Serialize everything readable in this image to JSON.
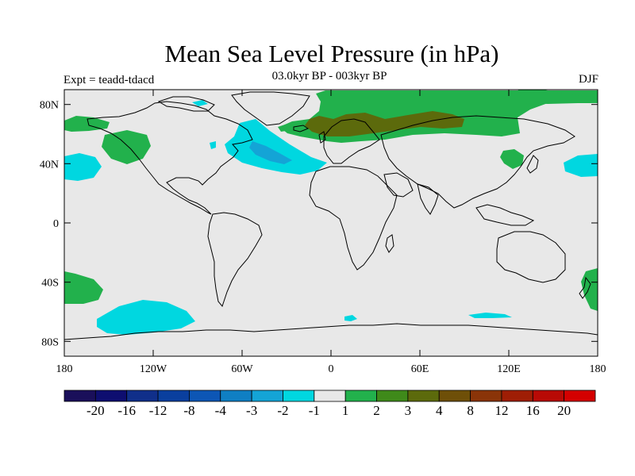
{
  "map": {
    "title": "Mean Sea Level Pressure (in hPa)",
    "subtitle": "03.0kyr BP - 003kyr BP",
    "experiment": "Expt = teadd-tdacd",
    "season": "DJF",
    "lat_labels": [
      "80N",
      "40N",
      "0",
      "40S",
      "80S"
    ],
    "lon_labels": [
      "180",
      "120W",
      "60W",
      "0",
      "60E",
      "120E",
      "180"
    ]
  },
  "colorbar": {
    "colors": [
      "#1a0f5a",
      "#0e0e70",
      "#102f8a",
      "#0a3f9e",
      "#0d56b5",
      "#0f7fc3",
      "#14a4d6",
      "#00d7e0",
      "#e8e8e8",
      "#22b14c",
      "#3f8a1a",
      "#5c6a0c",
      "#6e4f08",
      "#8a3408",
      "#9f1e05",
      "#b80a05",
      "#d40000"
    ],
    "labels": [
      "-20",
      "-16",
      "-12",
      "-8",
      "-4",
      "-3",
      "-2",
      "-1",
      "1",
      "2",
      "3",
      "4",
      "8",
      "12",
      "16",
      "20"
    ]
  },
  "anomaly_colors": {
    "ocean_neutral": "#e8e8e8",
    "positive_1": "#22b14c",
    "positive_3": "#5c6a0c",
    "negative_1": "#00d7e0",
    "negative_2": "#14a4d6"
  }
}
